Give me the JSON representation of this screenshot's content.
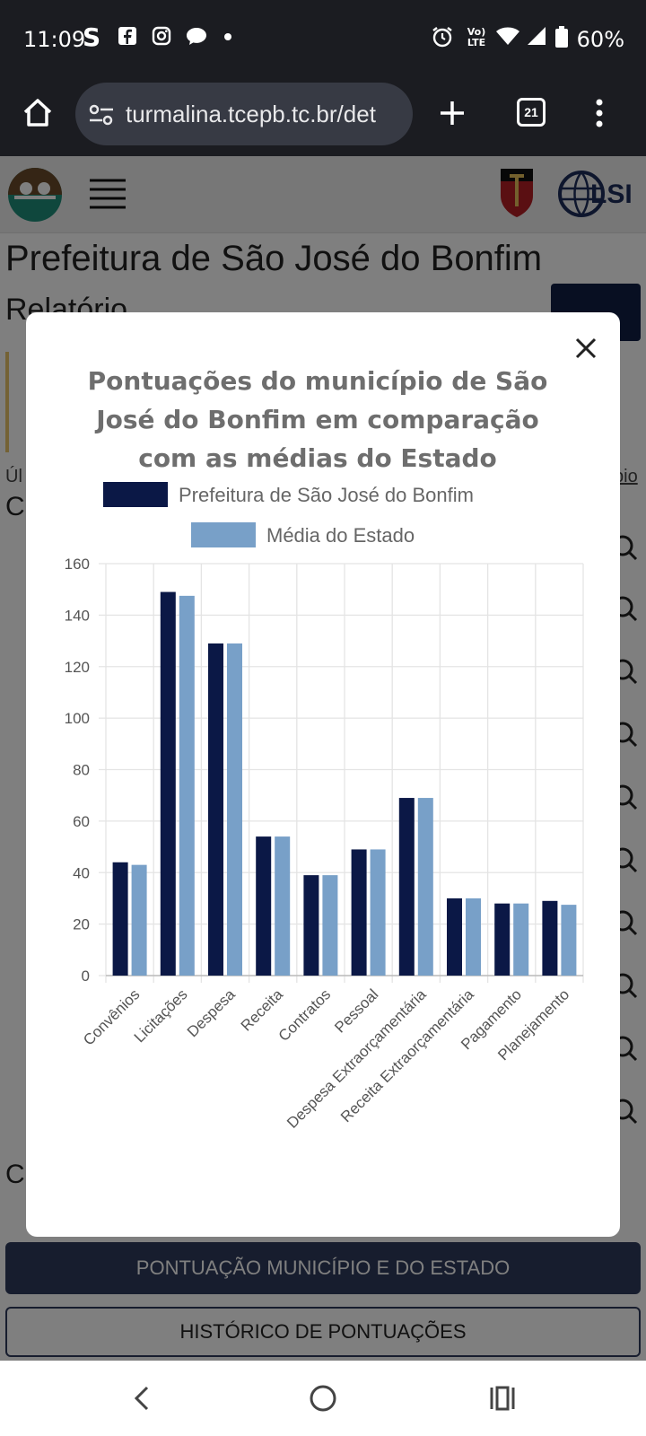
{
  "status_bar": {
    "time": "11:09",
    "battery": "60%",
    "network_label": "Vo) LTE",
    "icons": [
      "s-app-icon",
      "facebook-icon",
      "instagram-icon",
      "chat-icon",
      "dot-icon",
      "alarm-icon",
      "wifi-icon",
      "signal-icon",
      "battery-icon"
    ]
  },
  "browser": {
    "url": "turmalina.tcepb.tc.br/det",
    "tab_count": "21"
  },
  "page": {
    "title": "Prefeitura de São José do Bonfim",
    "subtitle": "Relatório",
    "side_link_text": "Úl",
    "right_link_text": "pio",
    "section_letter": "C",
    "section_letter_2": "C",
    "primary_button": "PONTUAÇÃO MUNICÍPIO E DO ESTADO",
    "secondary_button": "HISTÓRICO DE PONTUAÇÕES"
  },
  "colors": {
    "series_municipio": "#0b1846",
    "series_estado": "#78a0c8",
    "grid": "#e4e4e4",
    "title": "#6e6e6e"
  },
  "chart_data": {
    "type": "bar",
    "title": "Pontuações do município de São José do Bonfim em comparação com as médias do Estado",
    "title_lines": [
      "Pontuações do município de São",
      "José do Bonfim em comparação",
      "com as médias do Estado"
    ],
    "categories": [
      "Convênios",
      "Licitações",
      "Despesa",
      "Receita",
      "Contratos",
      "Pessoal",
      "Despesa Extraorçamentária",
      "Receita Extraorçamentária",
      "Pagamento",
      "Planejamento"
    ],
    "series": [
      {
        "name": "Prefeitura de São José do Bonfim",
        "values": [
          44,
          149,
          129,
          54,
          39,
          49,
          69,
          30,
          28,
          29
        ]
      },
      {
        "name": "Média do Estado",
        "values": [
          43,
          147.5,
          129,
          54,
          39,
          49,
          69,
          30,
          28,
          27.5
        ]
      }
    ],
    "yticks": [
      "0",
      "20",
      "40",
      "60",
      "80",
      "100",
      "120",
      "140",
      "160"
    ],
    "ylim": [
      0,
      160
    ],
    "xlabel": "",
    "ylabel": "",
    "grid": true,
    "legend_position": "top"
  }
}
